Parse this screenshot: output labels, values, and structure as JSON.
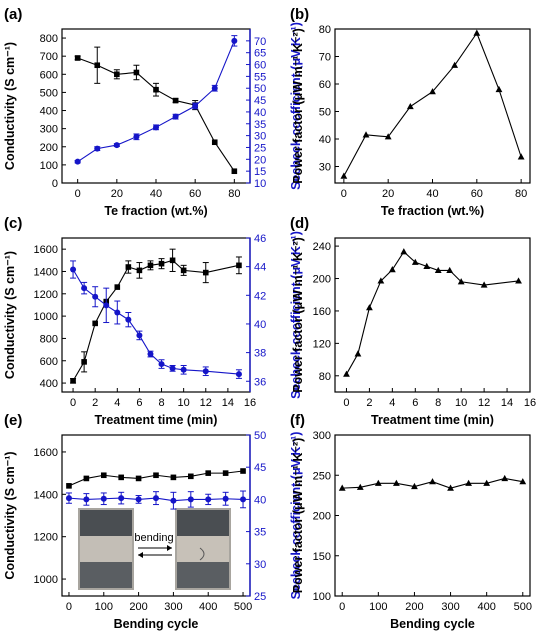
{
  "chart_data": [
    {
      "panel": "(a)",
      "type": "line",
      "xlabel": "Te fraction (wt.%)",
      "ylabel": "Conductivity (S cm⁻¹)",
      "y2label": "Seebeck coefficient (μV K⁻¹)",
      "xlim": [
        -8,
        88
      ],
      "ylim": [
        0,
        850
      ],
      "y2lim": [
        10,
        75
      ],
      "xticks": [
        0,
        20,
        40,
        60,
        80
      ],
      "yticks": [
        0,
        100,
        200,
        300,
        400,
        500,
        600,
        700,
        800
      ],
      "y2ticks": [
        10,
        15,
        20,
        25,
        30,
        35,
        40,
        45,
        50,
        55,
        60,
        65,
        70
      ],
      "series": [
        {
          "axis": "left",
          "marker": "square",
          "color": "#000000",
          "x": [
            0,
            10,
            20,
            30,
            40,
            50,
            60,
            70,
            80
          ],
          "values": [
            690,
            650,
            600,
            610,
            515,
            455,
            430,
            225,
            65
          ],
          "errors": [
            10,
            100,
            25,
            40,
            35,
            10,
            25,
            0,
            0
          ]
        },
        {
          "axis": "right",
          "marker": "circle",
          "color": "#1515c8",
          "x": [
            0,
            10,
            20,
            30,
            40,
            50,
            60,
            70,
            80
          ],
          "values": [
            19,
            24.5,
            26,
            29.5,
            33.5,
            38,
            42.5,
            50,
            70
          ],
          "errors": [
            0.5,
            0.8,
            0.6,
            1.2,
            1,
            1,
            1.2,
            1.2,
            2.2
          ]
        }
      ]
    },
    {
      "panel": "(b)",
      "type": "line",
      "xlabel": "Te fraction (wt.%)",
      "ylabel": "Power factor (μW m⁻¹ K⁻²)",
      "xlim": [
        -4,
        84
      ],
      "ylim": [
        24,
        80
      ],
      "xticks": [
        0,
        20,
        40,
        60,
        80
      ],
      "series": [
        {
          "axis": "left",
          "marker": "triangle",
          "color": "#000000",
          "x": [
            0,
            10,
            20,
            30,
            40,
            50,
            60,
            70,
            80
          ],
          "values": [
            26.5,
            41.5,
            40.8,
            51.8,
            57.2,
            66.8,
            78.5,
            58,
            33.5
          ]
        }
      ]
    },
    {
      "panel": "(c)",
      "type": "line",
      "xlabel": "Treatment time (min)",
      "ylabel": "Conductivity (S cm⁻¹)",
      "y2label": "Seebeck coefficient (μV K⁻¹)",
      "xlim": [
        -1,
        16
      ],
      "ylim": [
        320,
        1700
      ],
      "y2lim": [
        35.25,
        46
      ],
      "xticks": [
        0,
        2,
        4,
        6,
        8,
        10,
        12,
        14,
        16
      ],
      "yticks": [
        400,
        600,
        800,
        1000,
        1200,
        1400,
        1600
      ],
      "y2ticks": [
        36,
        38,
        40,
        42,
        44,
        46
      ],
      "series": [
        {
          "axis": "left",
          "marker": "square",
          "color": "#000000",
          "x": [
            0,
            1,
            2,
            3,
            4,
            5,
            6,
            7,
            8,
            9,
            10,
            12,
            15
          ],
          "values": [
            420,
            590,
            935,
            1130,
            1260,
            1440,
            1410,
            1455,
            1470,
            1500,
            1410,
            1390,
            1455
          ],
          "errors": [
            20,
            90,
            0,
            0,
            0,
            55,
            70,
            40,
            45,
            100,
            45,
            90,
            75
          ]
        },
        {
          "axis": "right",
          "marker": "circle",
          "color": "#1515c8",
          "x": [
            0,
            1,
            2,
            3,
            4,
            5,
            6,
            7,
            8,
            9,
            10,
            12,
            15
          ],
          "values": [
            43.8,
            42.5,
            41.9,
            41.3,
            40.8,
            40.3,
            39.2,
            37.9,
            37.2,
            36.9,
            36.8,
            36.7,
            36.5
          ],
          "errors": [
            0.6,
            0.4,
            0.7,
            1.2,
            0.8,
            0.5,
            0.3,
            0.2,
            0.3,
            0.2,
            0.3,
            0.3,
            0.3
          ]
        }
      ]
    },
    {
      "panel": "(d)",
      "type": "line",
      "xlabel": "Treatment time (min)",
      "ylabel": "Power factor (μW m⁻¹ K⁻²)",
      "xlim": [
        -1,
        16
      ],
      "ylim": [
        60,
        250
      ],
      "xticks": [
        0,
        2,
        4,
        6,
        8,
        10,
        12,
        14,
        16
      ],
      "yticks": [
        80,
        120,
        160,
        200,
        240
      ],
      "series": [
        {
          "axis": "left",
          "marker": "triangle",
          "color": "#000000",
          "x": [
            0,
            1,
            2,
            3,
            4,
            5,
            6,
            7,
            8,
            9,
            10,
            12,
            15
          ],
          "values": [
            82,
            107,
            164,
            197,
            211,
            233,
            220,
            215,
            210,
            210,
            196,
            192,
            197
          ]
        }
      ]
    },
    {
      "panel": "(e)",
      "type": "line",
      "xlabel": "Bending cycle",
      "ylabel": "Conductivity (S cm⁻¹)",
      "y2label": "Seebeck coefficient (μV K⁻¹)",
      "xlim": [
        -20,
        520
      ],
      "ylim": [
        920,
        1680
      ],
      "y2lim": [
        25,
        50
      ],
      "xticks": [
        0,
        100,
        200,
        300,
        400,
        500
      ],
      "yticks": [
        1000,
        1200,
        1400,
        1600
      ],
      "y2ticks": [
        25,
        30,
        35,
        40,
        45,
        50
      ],
      "series": [
        {
          "axis": "left",
          "marker": "square",
          "color": "#000000",
          "x": [
            0,
            50,
            100,
            150,
            200,
            250,
            300,
            350,
            400,
            450,
            500
          ],
          "values": [
            1440,
            1475,
            1490,
            1480,
            1475,
            1490,
            1480,
            1485,
            1500,
            1500,
            1510
          ]
        },
        {
          "axis": "right",
          "marker": "circle",
          "color": "#1515c8",
          "x": [
            0,
            50,
            100,
            150,
            200,
            250,
            300,
            350,
            400,
            450,
            500
          ],
          "values": [
            40.2,
            40,
            40.1,
            40.2,
            40,
            40.2,
            39.8,
            40,
            40,
            40.1,
            40
          ],
          "errors": [
            0.8,
            0.9,
            0.9,
            0.9,
            0.6,
            1,
            1.3,
            1.2,
            0.8,
            1,
            1.3
          ]
        }
      ],
      "inset": {
        "label": "bending"
      }
    },
    {
      "panel": "(f)",
      "type": "line",
      "xlabel": "Bending cycle",
      "ylabel": "Power factor (μW m⁻¹ K⁻²)",
      "xlim": [
        -20,
        520
      ],
      "ylim": [
        100,
        300
      ],
      "xticks": [
        0,
        100,
        200,
        300,
        400,
        500
      ],
      "yticks": [
        100,
        150,
        200,
        250,
        300
      ],
      "series": [
        {
          "axis": "left",
          "marker": "triangle",
          "color": "#000000",
          "x": [
            0,
            50,
            100,
            150,
            200,
            250,
            300,
            350,
            400,
            450,
            500
          ],
          "values": [
            234,
            235,
            240,
            240,
            236,
            242,
            234,
            240,
            240,
            246,
            242
          ]
        }
      ]
    }
  ]
}
